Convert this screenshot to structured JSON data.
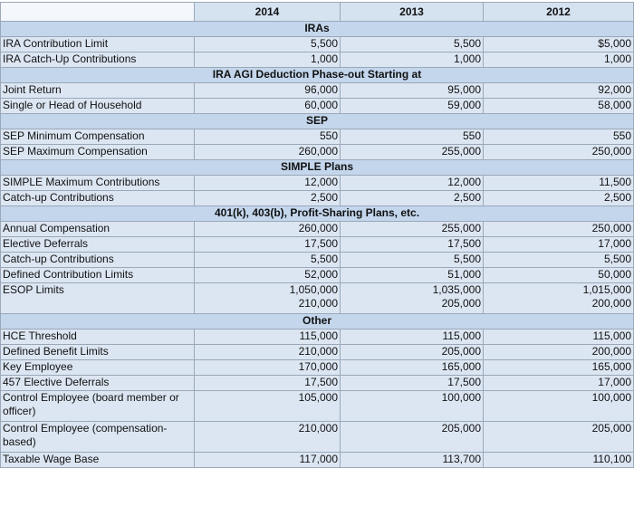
{
  "header": {
    "columns": [
      "2014",
      "2013",
      "2012"
    ]
  },
  "sections": [
    {
      "title": "IRAs",
      "rows": [
        {
          "label": "IRA Contribution Limit",
          "values": [
            "5,500",
            "5,500",
            "$5,000"
          ]
        },
        {
          "label": "IRA Catch-Up Contributions",
          "values": [
            "1,000",
            "1,000",
            "1,000"
          ]
        }
      ]
    },
    {
      "title": "IRA AGI Deduction Phase-out Starting at",
      "rows": [
        {
          "label": "Joint Return",
          "values": [
            "96,000",
            "95,000",
            "92,000"
          ]
        },
        {
          "label": "Single or Head of Household",
          "values": [
            "60,000",
            "59,000",
            "58,000"
          ]
        }
      ]
    },
    {
      "title": "SEP",
      "rows": [
        {
          "label": "SEP Minimum Compensation",
          "values": [
            "550",
            "550",
            "550"
          ]
        },
        {
          "label": "SEP Maximum Compensation",
          "values": [
            "260,000",
            "255,000",
            "250,000"
          ]
        }
      ]
    },
    {
      "title": "SIMPLE Plans",
      "rows": [
        {
          "label": "SIMPLE Maximum Contributions",
          "values": [
            "12,000",
            "12,000",
            "11,500"
          ]
        },
        {
          "label": "Catch-up Contributions",
          "values": [
            "2,500",
            "2,500",
            "2,500"
          ]
        }
      ]
    },
    {
      "title": "401(k), 403(b), Profit-Sharing Plans, etc.",
      "rows": [
        {
          "label": "Annual Compensation",
          "values": [
            "260,000",
            "255,000",
            "250,000"
          ]
        },
        {
          "label": "Elective Deferrals",
          "values": [
            "17,500",
            "17,500",
            "17,000"
          ]
        },
        {
          "label": "Catch-up Contributions",
          "values": [
            "5,500",
            "5,500",
            "5,500"
          ]
        },
        {
          "label": "Defined Contribution Limits",
          "values": [
            "52,000",
            "51,000",
            "50,000"
          ]
        },
        {
          "label": "ESOP Limits",
          "values": [
            "1,050,000\n210,000",
            "1,035,000\n205,000",
            "1,015,000\n200,000"
          ]
        }
      ]
    },
    {
      "title": "Other",
      "rows": [
        {
          "label": "HCE Threshold",
          "values": [
            "115,000",
            "115,000",
            "115,000"
          ]
        },
        {
          "label": "Defined Benefit Limits",
          "values": [
            "210,000",
            "205,000",
            "200,000"
          ]
        },
        {
          "label": "Key Employee",
          "values": [
            "170,000",
            "165,000",
            "165,000"
          ]
        },
        {
          "label": "457 Elective Deferrals",
          "values": [
            "17,500",
            "17,500",
            "17,000"
          ]
        },
        {
          "label": "Control Employee (board member or officer)",
          "values": [
            "105,000",
            "100,000",
            "100,000"
          ]
        },
        {
          "label": "Control Employee (compensation-based)",
          "values": [
            "210,000",
            "205,000",
            "205,000"
          ]
        },
        {
          "label": "Taxable Wage Base",
          "values": [
            "117,000",
            "113,700",
            "110,100"
          ]
        }
      ]
    }
  ]
}
